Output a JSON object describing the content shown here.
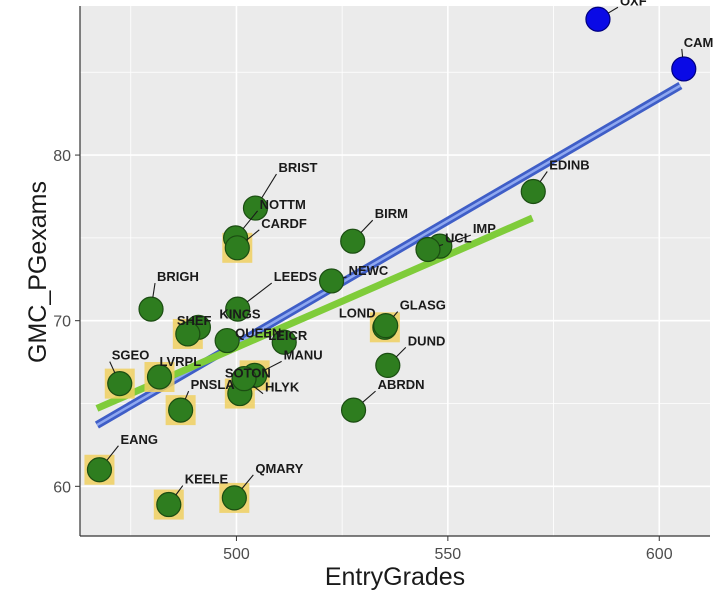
{
  "chart_data": {
    "type": "scatter",
    "title": "",
    "xlabel": "EntryGrades",
    "ylabel": "GMC_PGexams",
    "xlim": [
      463,
      612
    ],
    "ylim": [
      57,
      89
    ],
    "x_ticks": [
      500,
      550,
      600
    ],
    "y_ticks": [
      60,
      70,
      80
    ],
    "grid": true,
    "colors": {
      "panel_background": "#ebebeb",
      "grid": "#ffffff",
      "point_fill": "#2e7d1f",
      "point_stroke": "#1b4d12",
      "outlier_fill": "#0a0ae6",
      "highlight_square": "#f0d060",
      "blue_fit_line": "#4a6fd8",
      "green_fit_line": "#7fcc3a"
    },
    "points": [
      {
        "name": "OXF",
        "x": 585.5,
        "y": 88.2,
        "group": "outlier"
      },
      {
        "name": "CAM",
        "x": 605.8,
        "y": 85.2,
        "group": "outlier"
      },
      {
        "name": "EDINB",
        "x": 570.2,
        "y": 77.8,
        "group": "main"
      },
      {
        "name": "IMP",
        "x": 548.1,
        "y": 74.5,
        "group": "main"
      },
      {
        "name": "UCL",
        "x": 545.3,
        "y": 74.3,
        "group": "main"
      },
      {
        "name": "BIRM",
        "x": 527.5,
        "y": 74.8,
        "group": "main"
      },
      {
        "name": "NEWC",
        "x": 522.5,
        "y": 72.4,
        "group": "main"
      },
      {
        "name": "BRIST",
        "x": 504.5,
        "y": 76.8,
        "group": "main"
      },
      {
        "name": "NOTTM",
        "x": 499.8,
        "y": 75.0,
        "group": "main"
      },
      {
        "name": "CARDF",
        "x": 500.2,
        "y": 74.4,
        "group": "main",
        "highlight": true
      },
      {
        "name": "LEEDS",
        "x": 500.3,
        "y": 70.7,
        "group": "main"
      },
      {
        "name": "BRIGH",
        "x": 479.8,
        "y": 70.7,
        "group": "main"
      },
      {
        "name": "KINGS",
        "x": 491.0,
        "y": 69.6,
        "group": "main"
      },
      {
        "name": "SHEF",
        "x": 488.5,
        "y": 69.2,
        "group": "main",
        "highlight": true
      },
      {
        "name": "QUEEN",
        "x": 497.8,
        "y": 68.8,
        "group": "main"
      },
      {
        "name": "LEICR",
        "x": 511.3,
        "y": 68.7,
        "group": "main"
      },
      {
        "name": "LOND",
        "x": 535.1,
        "y": 69.6,
        "group": "main",
        "highlight": true
      },
      {
        "name": "GLASG",
        "x": 535.3,
        "y": 69.7,
        "group": "main"
      },
      {
        "name": "DUND",
        "x": 535.8,
        "y": 67.3,
        "group": "main"
      },
      {
        "name": "ABRDN",
        "x": 527.7,
        "y": 64.6,
        "group": "main"
      },
      {
        "name": "MANU",
        "x": 504.3,
        "y": 66.7,
        "group": "main",
        "highlight": true
      },
      {
        "name": "SOTON",
        "x": 500.8,
        "y": 65.6,
        "group": "main",
        "highlight": true
      },
      {
        "name": "HLYK",
        "x": 501.8,
        "y": 66.5,
        "group": "main"
      },
      {
        "name": "LVRPL",
        "x": 481.8,
        "y": 66.6,
        "group": "main",
        "highlight": true
      },
      {
        "name": "SGEO",
        "x": 472.4,
        "y": 66.2,
        "group": "main",
        "highlight": true
      },
      {
        "name": "PNSLA",
        "x": 486.8,
        "y": 64.6,
        "group": "main",
        "highlight": true
      },
      {
        "name": "EANG",
        "x": 467.6,
        "y": 61.0,
        "group": "main",
        "highlight": true
      },
      {
        "name": "KEELE",
        "x": 484.0,
        "y": 58.9,
        "group": "main",
        "highlight": true
      },
      {
        "name": "QMARY",
        "x": 499.5,
        "y": 59.3,
        "group": "main",
        "highlight": true
      }
    ],
    "fit_lines": [
      {
        "color_key": "blue_fit_line",
        "x": [
          467,
          605
        ],
        "y": [
          63.7,
          84.2
        ]
      },
      {
        "color_key": "green_fit_line",
        "x": [
          467,
          570
        ],
        "y": [
          64.7,
          76.2
        ]
      }
    ]
  }
}
